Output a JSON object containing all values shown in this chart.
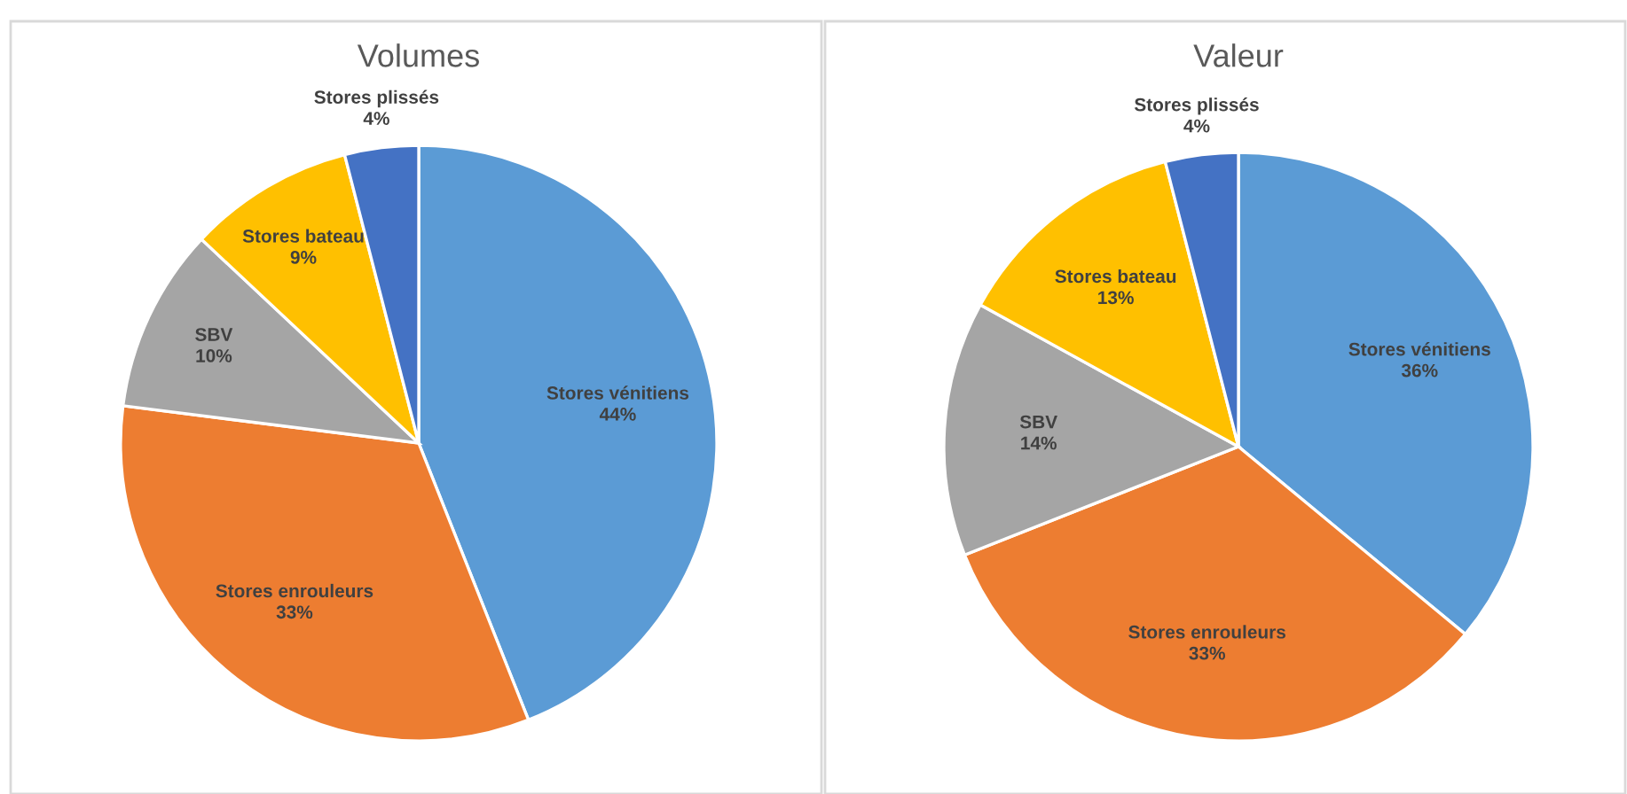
{
  "chart_data": [
    {
      "type": "pie",
      "title": "Volumes",
      "categories": [
        "Stores vénitiens",
        "Stores enrouleurs",
        "SBV",
        "Stores bateau",
        "Stores plissés"
      ],
      "values": [
        44,
        33,
        10,
        9,
        4
      ],
      "value_labels": [
        "44%",
        "33%",
        "10%",
        "9%",
        "4%"
      ],
      "colors": [
        "#5b9bd5",
        "#ed7d31",
        "#a5a5a5",
        "#ffc000",
        "#4472c4"
      ],
      "legend": false
    },
    {
      "type": "pie",
      "title": "Valeur",
      "categories": [
        "Stores vénitiens",
        "Stores enrouleurs",
        "SBV",
        "Stores bateau",
        "Stores plissés"
      ],
      "values": [
        36,
        33,
        14,
        13,
        4
      ],
      "value_labels": [
        "36%",
        "33%",
        "14%",
        "13%",
        "4%"
      ],
      "colors": [
        "#5b9bd5",
        "#ed7d31",
        "#a5a5a5",
        "#ffc000",
        "#4472c4"
      ],
      "legend": false
    }
  ]
}
